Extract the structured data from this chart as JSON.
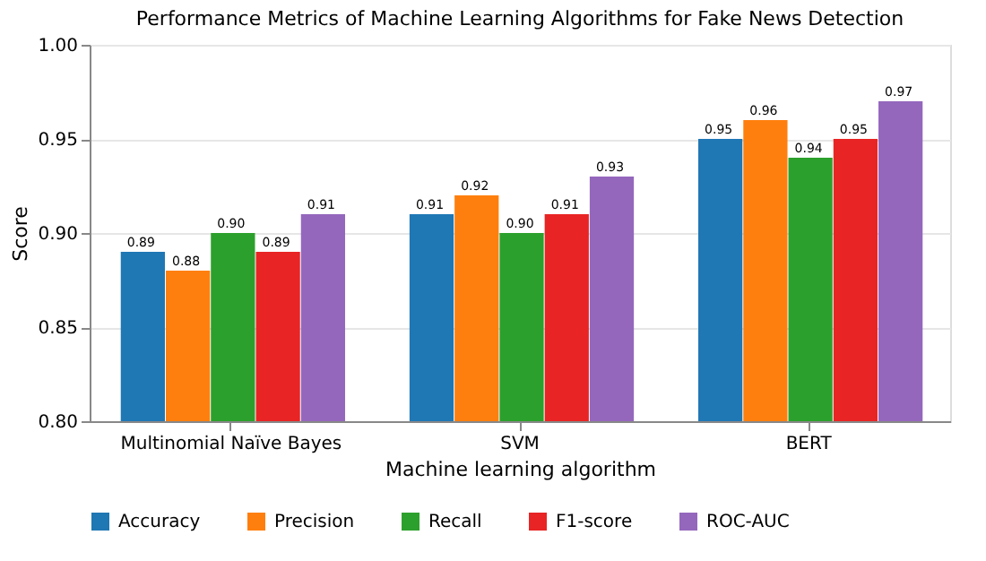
{
  "chart_data": {
    "type": "bar",
    "title": "Performance Metrics of Machine Learning Algorithms for Fake News Detection",
    "xlabel": "Machine learning algorithm",
    "ylabel": "Score",
    "categories": [
      "Multinomial Naïve Bayes",
      "SVM",
      "BERT"
    ],
    "series": [
      {
        "name": "Accuracy",
        "color": "#1f77b4",
        "values": [
          0.89,
          0.91,
          0.95
        ],
        "value_labels": [
          "0.89",
          "0.91",
          "0.95"
        ]
      },
      {
        "name": "Precision",
        "color": "#ff7f0e",
        "values": [
          0.88,
          0.92,
          0.96
        ],
        "value_labels": [
          "0.88",
          "0.92",
          "0.96"
        ]
      },
      {
        "name": "Recall",
        "color": "#2ca02c",
        "values": [
          0.9,
          0.9,
          0.94
        ],
        "value_labels": [
          "0.90",
          "0.90",
          "0.94"
        ]
      },
      {
        "name": "F1-score",
        "color": "#e82424",
        "values": [
          0.89,
          0.91,
          0.95
        ],
        "value_labels": [
          "0.89",
          "0.91",
          "0.95"
        ]
      },
      {
        "name": "ROC-AUC",
        "color": "#9467bd",
        "values": [
          0.91,
          0.93,
          0.97
        ],
        "value_labels": [
          "0.91",
          "0.93",
          "0.97"
        ]
      }
    ],
    "ylim": [
      0.8,
      1.0
    ],
    "yticks": [
      {
        "value": 0.8,
        "label": "0.80"
      },
      {
        "value": 0.85,
        "label": "0.85"
      },
      {
        "value": 0.9,
        "label": "0.90"
      },
      {
        "value": 0.95,
        "label": "0.95"
      },
      {
        "value": 1.0,
        "label": "1.00"
      }
    ],
    "grid": "y",
    "legend": "bottom"
  }
}
